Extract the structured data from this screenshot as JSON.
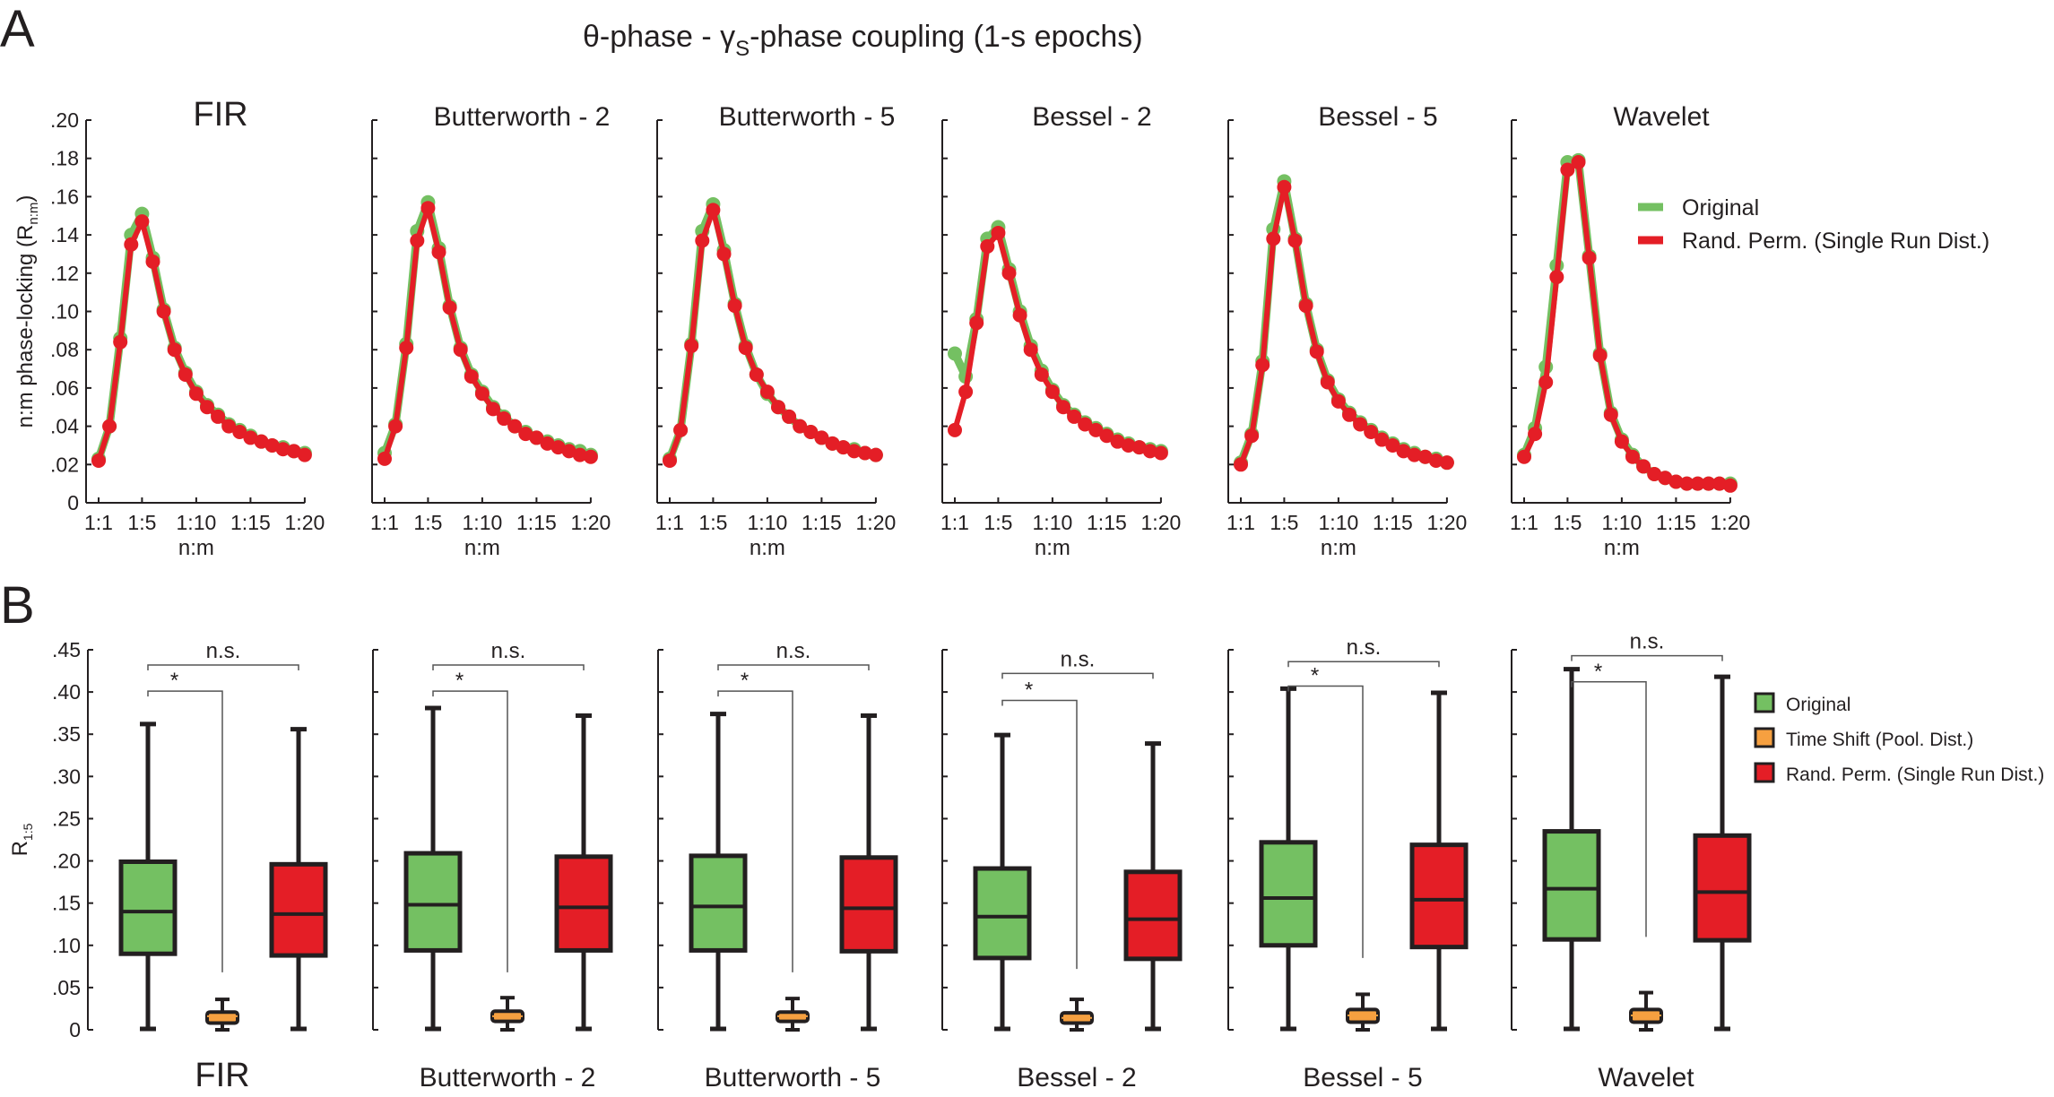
{
  "panel_labels": {
    "a": "A",
    "b": "B"
  },
  "title": {
    "prefix": "θ-phase - γ",
    "subscript": "S",
    "suffix": "-phase coupling (1-s epochs)"
  },
  "colors": {
    "original": "#74c062",
    "time_shift": "#f6a040",
    "rand_perm": "#e41e26",
    "axis": "#231f20"
  },
  "chart_data": [
    {
      "id": "A",
      "type": "line",
      "ylabel": "n:m phase-locking (R",
      "ylabel_sub": "n:m",
      "ylabel_suffix": ")",
      "xlabel": "n:m",
      "ylim": [
        0,
        0.2
      ],
      "yticks": [
        0,
        0.02,
        0.04,
        0.06,
        0.08,
        0.1,
        0.12,
        0.14,
        0.16,
        0.18,
        0.2
      ],
      "ytick_labels": [
        "0",
        ".02",
        ".04",
        ".06",
        ".08",
        ".10",
        ".12",
        ".14",
        ".16",
        ".18",
        ".20"
      ],
      "x": [
        1,
        2,
        3,
        4,
        5,
        6,
        7,
        8,
        9,
        10,
        11,
        12,
        13,
        14,
        15,
        16,
        17,
        18,
        19,
        20
      ],
      "xticks": [
        1,
        5,
        10,
        15,
        20
      ],
      "xtick_labels": [
        "1:1",
        "1:5",
        "1:10",
        "1:15",
        "1:20"
      ],
      "legend": {
        "placement": "right",
        "entries": [
          "Original",
          "Rand. Perm. (Single Run Dist.)"
        ]
      },
      "panels": [
        {
          "title": "FIR",
          "series": [
            {
              "name": "Original",
              "values": [
                0.023,
                0.04,
                0.086,
                0.14,
                0.151,
                0.128,
                0.101,
                0.081,
                0.068,
                0.058,
                0.051,
                0.046,
                0.041,
                0.038,
                0.035,
                0.032,
                0.03,
                0.029,
                0.027,
                0.026
              ]
            },
            {
              "name": "Rand. Perm. (Single Run Dist.)",
              "values": [
                0.022,
                0.04,
                0.084,
                0.135,
                0.147,
                0.126,
                0.1,
                0.08,
                0.067,
                0.057,
                0.05,
                0.045,
                0.04,
                0.037,
                0.034,
                0.032,
                0.03,
                0.028,
                0.027,
                0.025
              ]
            }
          ]
        },
        {
          "title": "Butterworth - 2",
          "series": [
            {
              "name": "Original",
              "values": [
                0.026,
                0.041,
                0.083,
                0.142,
                0.157,
                0.133,
                0.103,
                0.081,
                0.067,
                0.058,
                0.05,
                0.045,
                0.04,
                0.037,
                0.034,
                0.032,
                0.03,
                0.028,
                0.027,
                0.025
              ]
            },
            {
              "name": "Rand. Perm. (Single Run Dist.)",
              "values": [
                0.023,
                0.04,
                0.081,
                0.137,
                0.154,
                0.131,
                0.102,
                0.08,
                0.066,
                0.057,
                0.049,
                0.044,
                0.04,
                0.036,
                0.034,
                0.031,
                0.029,
                0.027,
                0.025,
                0.024
              ]
            }
          ]
        },
        {
          "title": "Butterworth - 5",
          "series": [
            {
              "name": "Original",
              "values": [
                0.023,
                0.038,
                0.083,
                0.142,
                0.156,
                0.132,
                0.104,
                0.082,
                0.067,
                0.057,
                0.05,
                0.045,
                0.04,
                0.037,
                0.034,
                0.031,
                0.029,
                0.028,
                0.026,
                0.025
              ]
            },
            {
              "name": "Rand. Perm. (Single Run Dist.)",
              "values": [
                0.022,
                0.038,
                0.082,
                0.137,
                0.153,
                0.13,
                0.103,
                0.081,
                0.067,
                0.058,
                0.05,
                0.045,
                0.04,
                0.037,
                0.034,
                0.031,
                0.029,
                0.027,
                0.026,
                0.025
              ]
            }
          ]
        },
        {
          "title": "Bessel - 2",
          "series": [
            {
              "name": "Original",
              "values": [
                0.078,
                0.066,
                0.096,
                0.138,
                0.144,
                0.122,
                0.1,
                0.082,
                0.069,
                0.059,
                0.051,
                0.046,
                0.042,
                0.039,
                0.036,
                0.033,
                0.031,
                0.029,
                0.028,
                0.027
              ]
            },
            {
              "name": "Rand. Perm. (Single Run Dist.)",
              "values": [
                0.038,
                0.058,
                0.094,
                0.134,
                0.141,
                0.12,
                0.098,
                0.08,
                0.067,
                0.058,
                0.05,
                0.045,
                0.041,
                0.038,
                0.035,
                0.032,
                0.03,
                0.029,
                0.027,
                0.026
              ]
            }
          ]
        },
        {
          "title": "Bessel - 5",
          "series": [
            {
              "name": "Original",
              "values": [
                0.021,
                0.036,
                0.074,
                0.143,
                0.168,
                0.138,
                0.104,
                0.08,
                0.064,
                0.054,
                0.047,
                0.042,
                0.038,
                0.034,
                0.031,
                0.028,
                0.026,
                0.024,
                0.023,
                0.021
              ]
            },
            {
              "name": "Rand. Perm. (Single Run Dist.)",
              "values": [
                0.02,
                0.035,
                0.072,
                0.138,
                0.165,
                0.137,
                0.103,
                0.079,
                0.063,
                0.053,
                0.046,
                0.041,
                0.037,
                0.033,
                0.03,
                0.027,
                0.025,
                0.024,
                0.022,
                0.021
              ]
            }
          ]
        },
        {
          "title": "Wavelet",
          "series": [
            {
              "name": "Original",
              "values": [
                0.025,
                0.039,
                0.071,
                0.124,
                0.178,
                0.179,
                0.129,
                0.078,
                0.047,
                0.033,
                0.025,
                0.019,
                0.015,
                0.013,
                0.011,
                0.01,
                0.01,
                0.01,
                0.01,
                0.01
              ]
            },
            {
              "name": "Rand. Perm. (Single Run Dist.)",
              "values": [
                0.024,
                0.036,
                0.063,
                0.118,
                0.174,
                0.178,
                0.128,
                0.077,
                0.046,
                0.032,
                0.024,
                0.019,
                0.015,
                0.013,
                0.011,
                0.01,
                0.01,
                0.01,
                0.01,
                0.009
              ]
            }
          ]
        }
      ]
    },
    {
      "id": "B",
      "type": "box",
      "ylabel": "R",
      "ylabel_sub": "1:5",
      "ylim": [
        0,
        0.45
      ],
      "yticks": [
        0,
        0.05,
        0.1,
        0.15,
        0.2,
        0.25,
        0.3,
        0.35,
        0.4,
        0.45
      ],
      "ytick_labels": [
        "0",
        ".05",
        ".10",
        ".15",
        ".20",
        ".25",
        ".30",
        ".35",
        ".40",
        ".45"
      ],
      "legend": {
        "placement": "right",
        "entries": [
          "Original",
          "Time Shift (Pool. Dist.)",
          "Rand. Perm. (Single Run Dist.)"
        ]
      },
      "annotations": {
        "ns": "n.s.",
        "sig": "*"
      },
      "panels": [
        {
          "title": "FIR",
          "ns_y": 0.432,
          "sig_y": 0.401,
          "sig_drop": 0.068,
          "boxes": [
            {
              "name": "Original",
              "whisker_low": 0.001,
              "q1": 0.09,
              "median": 0.14,
              "q3": 0.199,
              "whisker_high": 0.362
            },
            {
              "name": "Time Shift (Pool. Dist.)",
              "whisker_low": 0.0,
              "q1": 0.008,
              "median": 0.016,
              "q3": 0.021,
              "whisker_high": 0.036
            },
            {
              "name": "Rand. Perm. (Single Run Dist.)",
              "whisker_low": 0.001,
              "q1": 0.088,
              "median": 0.137,
              "q3": 0.196,
              "whisker_high": 0.356
            }
          ]
        },
        {
          "title": "Butterworth - 2",
          "ns_y": 0.432,
          "sig_y": 0.401,
          "sig_drop": 0.068,
          "boxes": [
            {
              "name": "Original",
              "whisker_low": 0.001,
              "q1": 0.094,
              "median": 0.148,
              "q3": 0.209,
              "whisker_high": 0.381
            },
            {
              "name": "Time Shift (Pool. Dist.)",
              "whisker_low": 0.0,
              "q1": 0.01,
              "median": 0.016,
              "q3": 0.022,
              "whisker_high": 0.038
            },
            {
              "name": "Rand. Perm. (Single Run Dist.)",
              "whisker_low": 0.001,
              "q1": 0.094,
              "median": 0.145,
              "q3": 0.205,
              "whisker_high": 0.372
            }
          ]
        },
        {
          "title": "Butterworth - 5",
          "ns_y": 0.432,
          "sig_y": 0.401,
          "sig_drop": 0.068,
          "boxes": [
            {
              "name": "Original",
              "whisker_low": 0.001,
              "q1": 0.094,
              "median": 0.146,
              "q3": 0.206,
              "whisker_high": 0.374
            },
            {
              "name": "Time Shift (Pool. Dist.)",
              "whisker_low": 0.0,
              "q1": 0.01,
              "median": 0.016,
              "q3": 0.021,
              "whisker_high": 0.037
            },
            {
              "name": "Rand. Perm. (Single Run Dist.)",
              "whisker_low": 0.001,
              "q1": 0.093,
              "median": 0.144,
              "q3": 0.204,
              "whisker_high": 0.372
            }
          ]
        },
        {
          "title": "Bessel - 2",
          "ns_y": 0.422,
          "sig_y": 0.39,
          "sig_drop": 0.072,
          "boxes": [
            {
              "name": "Original",
              "whisker_low": 0.001,
              "q1": 0.085,
              "median": 0.134,
              "q3": 0.191,
              "whisker_high": 0.349
            },
            {
              "name": "Time Shift (Pool. Dist.)",
              "whisker_low": 0.0,
              "q1": 0.008,
              "median": 0.014,
              "q3": 0.02,
              "whisker_high": 0.036
            },
            {
              "name": "Rand. Perm. (Single Run Dist.)",
              "whisker_low": 0.001,
              "q1": 0.084,
              "median": 0.131,
              "q3": 0.187,
              "whisker_high": 0.339
            }
          ]
        },
        {
          "title": "Bessel - 5",
          "ns_y": 0.436,
          "sig_y": 0.407,
          "sig_drop": 0.085,
          "boxes": [
            {
              "name": "Original",
              "whisker_low": 0.001,
              "q1": 0.1,
              "median": 0.156,
              "q3": 0.222,
              "whisker_high": 0.404
            },
            {
              "name": "Time Shift (Pool. Dist.)",
              "whisker_low": 0.0,
              "q1": 0.009,
              "median": 0.017,
              "q3": 0.024,
              "whisker_high": 0.042
            },
            {
              "name": "Rand. Perm. (Single Run Dist.)",
              "whisker_low": 0.001,
              "q1": 0.098,
              "median": 0.154,
              "q3": 0.219,
              "whisker_high": 0.399
            }
          ]
        },
        {
          "title": "Wavelet",
          "ns_y": 0.443,
          "sig_y": 0.412,
          "sig_drop": 0.11,
          "boxes": [
            {
              "name": "Original",
              "whisker_low": 0.001,
              "q1": 0.107,
              "median": 0.167,
              "q3": 0.235,
              "whisker_high": 0.427
            },
            {
              "name": "Time Shift (Pool. Dist.)",
              "whisker_low": 0.0,
              "q1": 0.009,
              "median": 0.017,
              "q3": 0.024,
              "whisker_high": 0.044
            },
            {
              "name": "Rand. Perm. (Single Run Dist.)",
              "whisker_low": 0.001,
              "q1": 0.106,
              "median": 0.163,
              "q3": 0.23,
              "whisker_high": 0.418
            }
          ]
        }
      ]
    }
  ]
}
